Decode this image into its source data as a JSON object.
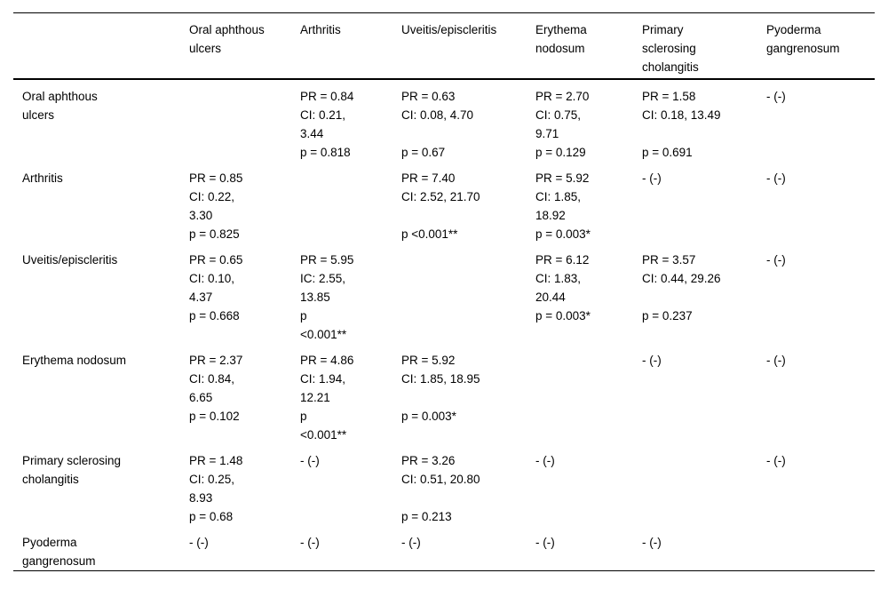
{
  "table": {
    "description": "Pairwise association table of extraintestinal manifestations with prevalence ratios (PR), confidence intervals (CI) and p-values",
    "text_color": "#000000",
    "background_color": "#ffffff",
    "headers": [
      {
        "lines": []
      },
      {
        "lines": [
          "Oral aphthous",
          "ulcers"
        ]
      },
      {
        "lines": [
          "Arthritis"
        ]
      },
      {
        "lines": [
          "Uveitis/episcleritis"
        ]
      },
      {
        "lines": [
          "Erythema",
          "nodosum"
        ]
      },
      {
        "lines": [
          "Primary",
          "sclerosing",
          "cholangitis"
        ]
      },
      {
        "lines": [
          "Pyoderma",
          "gangrenosum"
        ]
      }
    ],
    "rows": [
      {
        "label_lines": [
          "Oral aphthous",
          "ulcers"
        ],
        "cells": [
          {
            "pr": [],
            "ci": [],
            "p": []
          },
          {
            "pr": [
              "PR = 0.84"
            ],
            "ci": [
              "CI: 0.21,",
              "3.44"
            ],
            "p": [
              "p = 0.818"
            ]
          },
          {
            "pr": [
              "PR = 0.63"
            ],
            "ci": [
              "CI: 0.08, 4.70"
            ],
            "p": [
              "p = 0.67"
            ]
          },
          {
            "pr": [
              "PR = 2.70"
            ],
            "ci": [
              "CI: 0.75,",
              "9.71"
            ],
            "p": [
              "p = 0.129"
            ]
          },
          {
            "pr": [
              "PR = 1.58"
            ],
            "ci": [
              "CI: 0.18, 13.49"
            ],
            "p": [
              "p = 0.691"
            ]
          },
          {
            "pr": [
              "- (-)"
            ],
            "ci": [],
            "p": []
          }
        ]
      },
      {
        "label_lines": [
          "Arthritis"
        ],
        "cells": [
          {
            "pr": [
              "PR = 0.85"
            ],
            "ci": [
              "CI: 0.22,",
              "3.30"
            ],
            "p": [
              "p = 0.825"
            ]
          },
          {
            "pr": [],
            "ci": [],
            "p": []
          },
          {
            "pr": [
              "PR = 7.40"
            ],
            "ci": [
              "CI: 2.52, 21.70"
            ],
            "p": [
              "p <0.001**"
            ]
          },
          {
            "pr": [
              "PR = 5.92"
            ],
            "ci": [
              "CI: 1.85,",
              "18.92"
            ],
            "p": [
              "p = 0.003*"
            ]
          },
          {
            "pr": [
              "- (-)"
            ],
            "ci": [],
            "p": []
          },
          {
            "pr": [
              "- (-)"
            ],
            "ci": [],
            "p": []
          }
        ]
      },
      {
        "label_lines": [
          "Uveitis/episcleritis"
        ],
        "cells": [
          {
            "pr": [
              "PR = 0.65"
            ],
            "ci": [
              "CI: 0.10,",
              "4.37"
            ],
            "p": [
              "p = 0.668"
            ]
          },
          {
            "pr": [
              "PR = 5.95"
            ],
            "ci": [
              "IC: 2.55,",
              "13.85"
            ],
            "p": [
              "p",
              "<0.001**"
            ]
          },
          {
            "pr": [],
            "ci": [],
            "p": []
          },
          {
            "pr": [
              "PR = 6.12"
            ],
            "ci": [
              "CI: 1.83,",
              "20.44"
            ],
            "p": [
              "p = 0.003*"
            ]
          },
          {
            "pr": [
              "PR = 3.57"
            ],
            "ci": [
              "CI: 0.44, 29.26"
            ],
            "p": [
              "p = 0.237"
            ]
          },
          {
            "pr": [
              "- (-)"
            ],
            "ci": [],
            "p": []
          }
        ]
      },
      {
        "label_lines": [
          "Erythema nodosum"
        ],
        "cells": [
          {
            "pr": [
              "PR = 2.37"
            ],
            "ci": [
              "CI: 0.84,",
              "6.65"
            ],
            "p": [
              "p = 0.102"
            ]
          },
          {
            "pr": [
              "PR = 4.86"
            ],
            "ci": [
              "CI: 1.94,",
              "12.21"
            ],
            "p": [
              "p",
              "<0.001**"
            ]
          },
          {
            "pr": [
              "PR = 5.92"
            ],
            "ci": [
              "CI: 1.85, 18.95"
            ],
            "p": [
              "p = 0.003*"
            ]
          },
          {
            "pr": [],
            "ci": [],
            "p": []
          },
          {
            "pr": [
              "- (-)"
            ],
            "ci": [],
            "p": []
          },
          {
            "pr": [
              "- (-)"
            ],
            "ci": [],
            "p": []
          }
        ]
      },
      {
        "label_lines": [
          "Primary sclerosing",
          "cholangitis"
        ],
        "cells": [
          {
            "pr": [
              "PR = 1.48"
            ],
            "ci": [
              "CI: 0.25,",
              "8.93"
            ],
            "p": [
              "p = 0.68"
            ]
          },
          {
            "pr": [
              "- (-)"
            ],
            "ci": [],
            "p": []
          },
          {
            "pr": [
              "PR = 3.26"
            ],
            "ci": [
              "CI: 0.51, 20.80"
            ],
            "p": [
              "p = 0.213"
            ]
          },
          {
            "pr": [
              "- (-)"
            ],
            "ci": [],
            "p": []
          },
          {
            "pr": [],
            "ci": [],
            "p": []
          },
          {
            "pr": [
              "- (-)"
            ],
            "ci": [],
            "p": []
          }
        ]
      },
      {
        "label_lines": [
          "Pyoderma",
          "gangrenosum"
        ],
        "cells": [
          {
            "pr": [
              "- (-)"
            ],
            "ci": [],
            "p": []
          },
          {
            "pr": [
              "- (-)"
            ],
            "ci": [],
            "p": []
          },
          {
            "pr": [
              "- (-)"
            ],
            "ci": [],
            "p": []
          },
          {
            "pr": [
              "- (-)"
            ],
            "ci": [],
            "p": []
          },
          {
            "pr": [
              "- (-)"
            ],
            "ci": [],
            "p": []
          },
          {
            "pr": [],
            "ci": [],
            "p": []
          }
        ]
      }
    ]
  }
}
